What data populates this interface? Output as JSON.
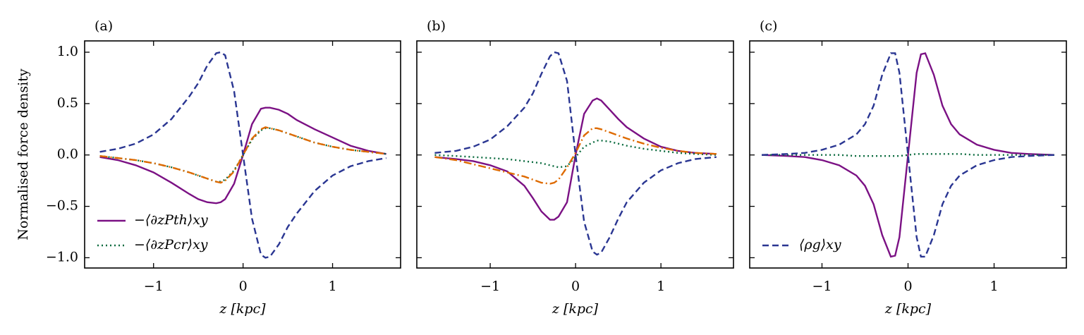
{
  "chart_data": [
    {
      "type": "line",
      "title": "(a)",
      "xlabel": "z [kpc]",
      "ylabel": "Normalised force density",
      "legend": "lower left",
      "show_ytick_labels": true,
      "xlim": [
        -1.77,
        1.76
      ],
      "ylim": [
        -1.1,
        1.11
      ],
      "xticks": [
        {
          "value": -1,
          "label": "−1"
        },
        0,
        1
      ],
      "yticks": [
        {
          "value": -1.0,
          "label": "−1.0"
        },
        {
          "value": -0.5,
          "label": "−0.5"
        },
        {
          "value": 0.0,
          "label": "0.0"
        },
        {
          "value": 0.5,
          "label": "0.5"
        },
        {
          "value": 1.0,
          "label": "1.0"
        }
      ],
      "x": [
        -1.6,
        -1.4,
        -1.2,
        -1.0,
        -0.8,
        -0.6,
        -0.5,
        -0.4,
        -0.3,
        -0.25,
        -0.2,
        -0.1,
        0,
        0.1,
        0.2,
        0.25,
        0.3,
        0.4,
        0.5,
        0.6,
        0.8,
        1.0,
        1.2,
        1.4,
        1.6
      ],
      "series": [
        {
          "name": "−⟨∂zPth⟩xy",
          "color": "#7b1184",
          "dash": "solid",
          "values": [
            -0.02,
            -0.05,
            -0.1,
            -0.17,
            -0.27,
            -0.38,
            -0.43,
            -0.46,
            -0.47,
            -0.46,
            -0.43,
            -0.28,
            0,
            0.3,
            0.45,
            0.46,
            0.46,
            0.44,
            0.4,
            0.34,
            0.25,
            0.17,
            0.09,
            0.04,
            0.01
          ]
        },
        {
          "name": "−⟨∂zPcr⟩xy",
          "color": "#0b6b3f",
          "dash": "dotted",
          "values": [
            -0.01,
            -0.03,
            -0.05,
            -0.08,
            -0.12,
            -0.17,
            -0.2,
            -0.23,
            -0.26,
            -0.26,
            -0.24,
            -0.15,
            0,
            0.15,
            0.24,
            0.26,
            0.26,
            0.24,
            0.21,
            0.18,
            0.12,
            0.08,
            0.05,
            0.03,
            0.01
          ]
        },
        {
          "color": "#2a3692",
          "dash": "dashed",
          "values": [
            0.03,
            0.06,
            0.11,
            0.2,
            0.35,
            0.57,
            0.7,
            0.87,
            0.99,
            1.0,
            0.97,
            0.62,
            0,
            -0.62,
            -0.97,
            -1.0,
            -0.99,
            -0.87,
            -0.7,
            -0.57,
            -0.35,
            -0.2,
            -0.11,
            -0.06,
            -0.03
          ]
        },
        {
          "color": "#de6a00",
          "dash": "dashdot",
          "values": [
            -0.01,
            -0.03,
            -0.05,
            -0.08,
            -0.12,
            -0.17,
            -0.2,
            -0.23,
            -0.26,
            -0.27,
            -0.25,
            -0.16,
            0,
            0.16,
            0.25,
            0.27,
            0.26,
            0.24,
            0.21,
            0.18,
            0.12,
            0.08,
            0.05,
            0.03,
            0.01
          ]
        }
      ]
    },
    {
      "type": "line",
      "title": "(b)",
      "xlabel": "z [kpc]",
      "show_ytick_labels": false,
      "xlim": [
        -1.86,
        1.85
      ],
      "ylim": [
        -1.1,
        1.11
      ],
      "xticks": [
        {
          "value": -1,
          "label": "−1"
        },
        0,
        1
      ],
      "yticks": [
        -1.0,
        -0.5,
        0.0,
        0.5,
        1.0
      ],
      "x": [
        -1.65,
        -1.4,
        -1.2,
        -1.0,
        -0.8,
        -0.6,
        -0.5,
        -0.4,
        -0.3,
        -0.25,
        -0.2,
        -0.1,
        0,
        0.1,
        0.2,
        0.25,
        0.3,
        0.4,
        0.5,
        0.6,
        0.8,
        1.0,
        1.2,
        1.4,
        1.65
      ],
      "series": [
        {
          "color": "#7b1184",
          "dash": "solid",
          "values": [
            -0.02,
            -0.04,
            -0.06,
            -0.1,
            -0.16,
            -0.3,
            -0.42,
            -0.55,
            -0.63,
            -0.63,
            -0.6,
            -0.46,
            0,
            0.4,
            0.53,
            0.55,
            0.53,
            0.44,
            0.35,
            0.27,
            0.16,
            0.08,
            0.04,
            0.02,
            0.01
          ]
        },
        {
          "color": "#0b6b3f",
          "dash": "dotted",
          "values": [
            0,
            -0.01,
            -0.02,
            -0.03,
            -0.04,
            -0.06,
            -0.07,
            -0.08,
            -0.1,
            -0.11,
            -0.12,
            -0.11,
            -0.02,
            0.08,
            0.12,
            0.14,
            0.14,
            0.13,
            0.11,
            0.09,
            0.06,
            0.04,
            0.02,
            0.01,
            0
          ]
        },
        {
          "color": "#2a3692",
          "dash": "dashed",
          "values": [
            0.02,
            0.04,
            0.08,
            0.15,
            0.28,
            0.46,
            0.6,
            0.79,
            0.96,
            1.0,
            0.99,
            0.72,
            0,
            -0.65,
            -0.94,
            -0.97,
            -0.95,
            -0.8,
            -0.62,
            -0.46,
            -0.27,
            -0.15,
            -0.08,
            -0.04,
            -0.02
          ]
        },
        {
          "color": "#de6a00",
          "dash": "dashdot",
          "values": [
            -0.02,
            -0.05,
            -0.09,
            -0.13,
            -0.17,
            -0.21,
            -0.24,
            -0.27,
            -0.28,
            -0.27,
            -0.24,
            -0.12,
            0.02,
            0.19,
            0.26,
            0.26,
            0.25,
            0.22,
            0.19,
            0.16,
            0.11,
            0.07,
            0.04,
            0.02,
            0.01
          ]
        }
      ]
    },
    {
      "type": "line",
      "title": "(c)",
      "xlabel": "z [kpc]",
      "legend": "lower left",
      "show_ytick_labels": false,
      "xlim": [
        -1.84,
        1.84
      ],
      "ylim": [
        -1.1,
        1.11
      ],
      "xticks": [
        {
          "value": -1,
          "label": "−1"
        },
        0,
        1
      ],
      "yticks": [
        -1.0,
        -0.5,
        0.0,
        0.5,
        1.0
      ],
      "x": [
        -1.7,
        -1.4,
        -1.2,
        -1.0,
        -0.8,
        -0.6,
        -0.5,
        -0.4,
        -0.3,
        -0.2,
        -0.15,
        -0.1,
        0,
        0.1,
        0.15,
        0.2,
        0.3,
        0.4,
        0.5,
        0.6,
        0.8,
        1.0,
        1.2,
        1.4,
        1.7
      ],
      "series": [
        {
          "color": "#7b1184",
          "dash": "solid",
          "values": [
            0,
            -0.01,
            -0.02,
            -0.05,
            -0.1,
            -0.2,
            -0.3,
            -0.48,
            -0.78,
            -0.99,
            -0.98,
            -0.8,
            0,
            0.8,
            0.98,
            0.99,
            0.78,
            0.48,
            0.3,
            0.2,
            0.1,
            0.05,
            0.02,
            0.01,
            0
          ]
        },
        {
          "color": "#0b6b3f",
          "dash": "dotted",
          "values": [
            0,
            0,
            0,
            0,
            0,
            -0.01,
            -0.01,
            -0.01,
            -0.01,
            -0.01,
            -0.01,
            -0.01,
            0,
            0.01,
            0.01,
            0.01,
            0.01,
            0.01,
            0.01,
            0.01,
            0,
            0,
            0,
            0,
            0
          ]
        },
        {
          "name": "⟨ρg⟩xy",
          "color": "#2a3692",
          "dash": "dashed",
          "values": [
            0,
            0.01,
            0.02,
            0.05,
            0.1,
            0.2,
            0.3,
            0.48,
            0.78,
            0.99,
            0.99,
            0.8,
            0,
            -0.8,
            -0.99,
            -0.99,
            -0.78,
            -0.48,
            -0.3,
            -0.2,
            -0.1,
            -0.05,
            -0.02,
            -0.01,
            0
          ]
        }
      ]
    }
  ]
}
